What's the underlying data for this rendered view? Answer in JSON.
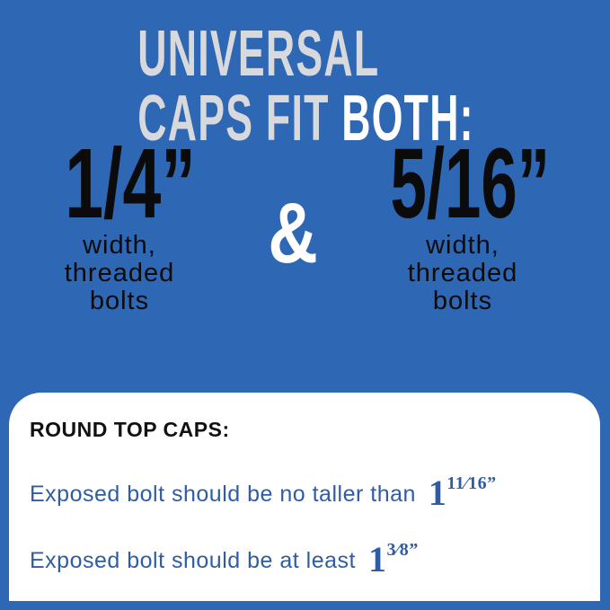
{
  "title": {
    "text": "UNIVERSAL CAPS FIT ",
    "highlight": "BOTH:"
  },
  "sizes": [
    {
      "value": "1/4”",
      "description_line1": "width,",
      "description_line2": "threaded",
      "description_line3": "bolts"
    },
    {
      "value": "5/16”",
      "description_line1": "width,",
      "description_line2": "threaded",
      "description_line3": "bolts"
    }
  ],
  "ampersand": "&",
  "info_box": {
    "heading": "ROUND TOP CAPS:",
    "rows": [
      {
        "text": "Exposed bolt should be no taller than",
        "whole": "1",
        "fraction": "11⁄16",
        "unit": "”"
      },
      {
        "text": "Exposed bolt should be at least",
        "whole": "1",
        "fraction": "3⁄8",
        "unit": "”"
      }
    ]
  },
  "colors": {
    "background": "#2e67b3",
    "title": "#d7d9dd",
    "highlight": "#ffffff",
    "row_text": "#2f5da3"
  }
}
